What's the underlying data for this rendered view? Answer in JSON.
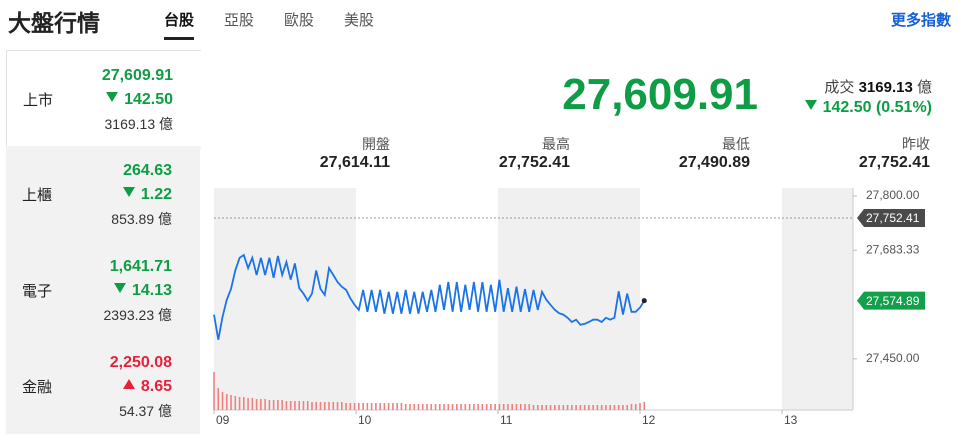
{
  "header": {
    "title": "大盤行情",
    "tabs": [
      "台股",
      "亞股",
      "歐股",
      "美股"
    ],
    "active_tab": 0,
    "more": "更多指數"
  },
  "indices": [
    {
      "name": "上市",
      "price": "27,609.91",
      "change": "142.50",
      "volume": "3169.13 億",
      "direction": "down"
    },
    {
      "name": "上櫃",
      "price": "264.63",
      "change": "1.22",
      "volume": "853.89 億",
      "direction": "down"
    },
    {
      "name": "電子",
      "price": "1,641.71",
      "change": "14.13",
      "volume": "2393.23 億",
      "direction": "down"
    },
    {
      "name": "金融",
      "price": "2,250.08",
      "change": "8.65",
      "volume": "54.37 億",
      "direction": "up"
    }
  ],
  "active_index": 0,
  "summary": {
    "price": "27,609.91",
    "volume_label": "成交",
    "volume": "3169.13",
    "volume_unit": "億",
    "change": "142.50 (0.51%)",
    "direction": "down"
  },
  "stats": [
    {
      "label": "開盤",
      "value": "27,614.11"
    },
    {
      "label": "最高",
      "value": "27,752.41"
    },
    {
      "label": "最低",
      "value": "27,490.89"
    },
    {
      "label": "昨收",
      "value": "27,752.41"
    }
  ],
  "chart": {
    "type": "line",
    "color": "#1a73e8",
    "volume_color": "#f08080",
    "x": [
      9,
      9.03,
      9.06,
      9.09,
      9.12,
      9.15,
      9.18,
      9.21,
      9.24,
      9.27,
      9.3,
      9.33,
      9.36,
      9.39,
      9.42,
      9.45,
      9.48,
      9.51,
      9.54,
      9.57,
      9.6,
      9.63,
      9.66,
      9.69,
      9.72,
      9.75,
      9.78,
      9.81,
      9.84,
      9.87,
      9.9,
      9.93,
      9.96,
      9.99,
      10.02,
      10.05,
      10.08,
      10.11,
      10.14,
      10.17,
      10.2,
      10.23,
      10.26,
      10.29,
      10.32,
      10.35,
      10.38,
      10.41,
      10.44,
      10.47,
      10.5,
      10.53,
      10.56,
      10.59,
      10.62,
      10.65,
      10.68,
      10.71,
      10.74,
      10.77,
      10.8,
      10.83,
      10.86,
      10.89,
      10.92,
      10.95,
      10.98,
      11.01,
      11.04,
      11.07,
      11.1,
      11.13,
      11.16,
      11.19,
      11.22,
      11.25,
      11.28,
      11.31,
      11.34,
      11.37,
      11.4,
      11.43,
      11.46,
      11.49,
      11.52,
      11.55,
      11.58,
      11.61,
      11.64,
      11.67,
      11.7,
      11.73,
      11.76,
      11.79,
      11.82,
      11.85,
      11.88,
      11.91,
      11.94,
      11.97,
      12,
      12.03
    ],
    "values": [
      27545,
      27491,
      27540,
      27577,
      27600,
      27640,
      27667,
      27673,
      27645,
      27667,
      27630,
      27667,
      27630,
      27667,
      27624,
      27671,
      27630,
      27658,
      27620,
      27655,
      27602,
      27590,
      27575,
      27590,
      27640,
      27600,
      27587,
      27645,
      27630,
      27615,
      27605,
      27598,
      27580,
      27566,
      27555,
      27598,
      27551,
      27598,
      27551,
      27598,
      27547,
      27594,
      27547,
      27594,
      27547,
      27598,
      27547,
      27594,
      27547,
      27594,
      27551,
      27598,
      27551,
      27609,
      27555,
      27615,
      27551,
      27615,
      27551,
      27609,
      27555,
      27615,
      27551,
      27615,
      27551,
      27609,
      27551,
      27620,
      27551,
      27602,
      27551,
      27605,
      27551,
      27600,
      27551,
      27598,
      27555,
      27594,
      27577,
      27566,
      27555,
      27548,
      27545,
      27538,
      27529,
      27534,
      27523,
      27525,
      27529,
      27534,
      27534,
      27529,
      27538,
      27534,
      27538,
      27595,
      27545,
      27590,
      27551,
      27551,
      27560,
      27574.89
    ],
    "volume": [
      38,
      22,
      18,
      16,
      15,
      14,
      13,
      13,
      12,
      12,
      11,
      11,
      11,
      10,
      10,
      10,
      10,
      9,
      9,
      9,
      9,
      9,
      9,
      8,
      8,
      8,
      8,
      8,
      8,
      8,
      8,
      7,
      7,
      7,
      7,
      7,
      7,
      7,
      7,
      7,
      7,
      7,
      7,
      7,
      7,
      6,
      6,
      6,
      6,
      6,
      6,
      6,
      6,
      6,
      6,
      6,
      6,
      6,
      6,
      6,
      6,
      6,
      6,
      6,
      6,
      6,
      6,
      6,
      6,
      6,
      6,
      6,
      6,
      6,
      6,
      5,
      5,
      5,
      5,
      5,
      5,
      5,
      5,
      5,
      5,
      5,
      5,
      5,
      5,
      5,
      5,
      5,
      5,
      5,
      5,
      5,
      5,
      5,
      6,
      6,
      7,
      8
    ],
    "vlim": [
      0,
      40
    ],
    "xlim": [
      9,
      13.5
    ],
    "xticks": [
      {
        "value": 9,
        "label": "09"
      },
      10,
      11,
      12,
      13
    ],
    "ylim": [
      27340,
      27817
    ],
    "yticks": [
      {
        "value": 27800,
        "label": "27,800.00"
      },
      {
        "value": 27683.33,
        "label": "27,683.33"
      },
      {
        "value": 27450,
        "label": "27,450.00"
      }
    ],
    "previous_close": {
      "value": 27752.41,
      "label": "27,752.41"
    },
    "last": {
      "value": 27574.89,
      "label": "27,574.89"
    }
  }
}
